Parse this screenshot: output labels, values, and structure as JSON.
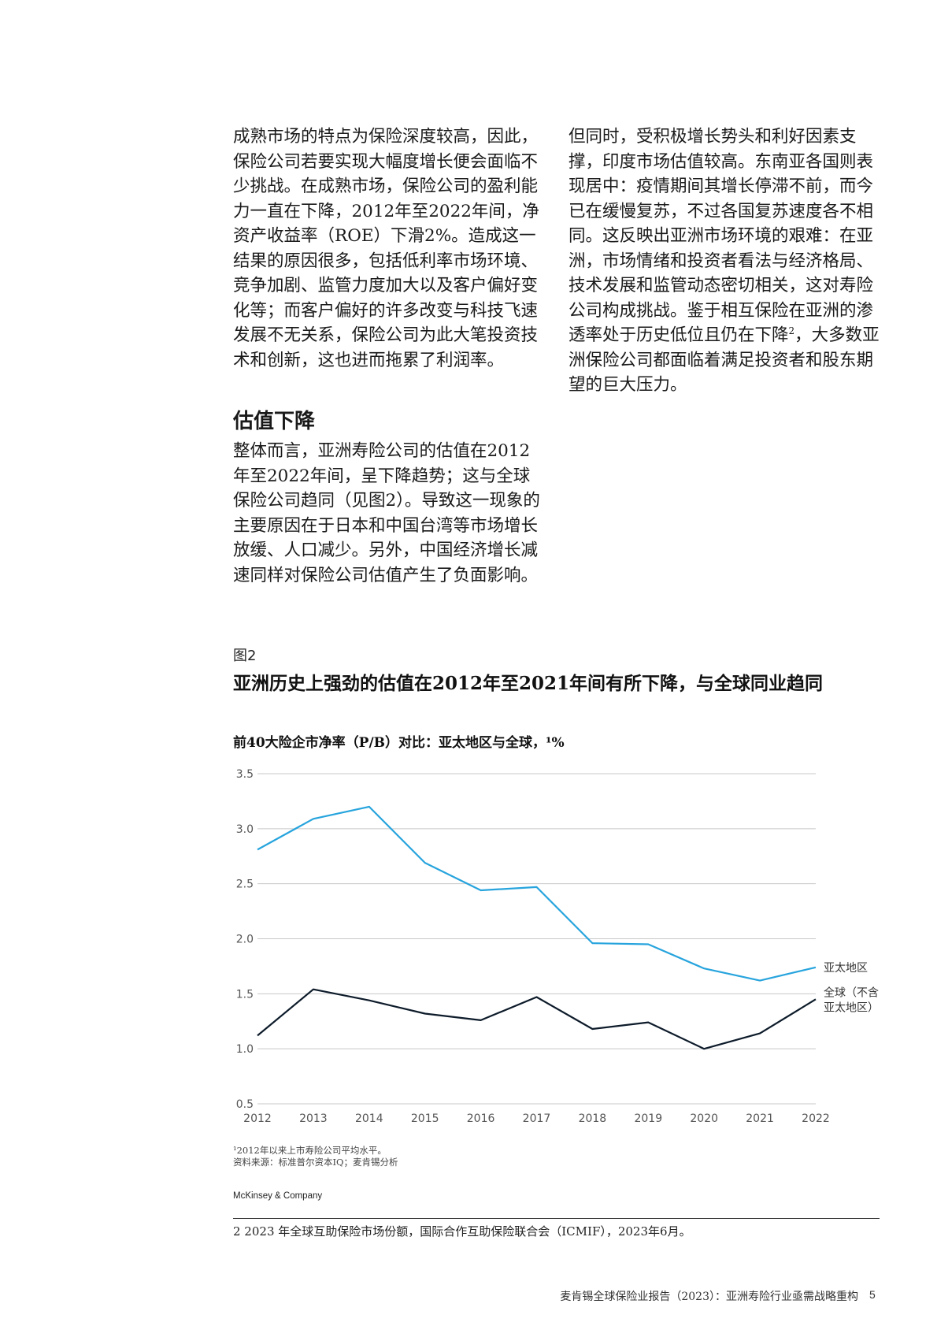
{
  "body": {
    "left_paragraphs": [
      "成熟市场的特点为保险深度较高，因此，保险公司若要实现大幅度增长便会面临不少挑战。在成熟市场，保险公司的盈利能力一直在下降，2012年至2022年间，净资产收益率（ROE）下滑2%。造成这一结果的原因很多，包括低利率市场环境、竞争加剧、监管力度加大以及客户偏好变化等；而客户偏好的许多改变与科技飞速发展不无关系，保险公司为此大笔投资技术和创新，这也进而拖累了利润率。"
    ],
    "section_heading": "估值下降",
    "section_paragraphs": [
      "整体而言，亚洲寿险公司的估值在2012年至2022年间，呈下降趋势；这与全球保险公司趋同（见图2）。导致这一现象的主要原因在于日本和中国台湾等市场增长放缓、人口减少。另外，中国经济增长减速同样对保险公司估值产生了负面影响。"
    ],
    "right_paragraph_a": "但同时，受积极增长势头和利好因素支撑，印度市场估值较高。东南亚各国则表现居中：疫情期间其增长停滞不前，而今已在缓慢复苏，不过各国复苏速度各不相同。这反映出亚洲市场环境的艰难：在亚洲，市场情绪和投资者看法与经济格局、技术发展和监管动态密切相关，这对寿险公司构成挑战。鉴于相互保险在亚洲的渗透率处于历史低位且仍在下降",
    "right_paragraph_sup": "2",
    "right_paragraph_b": "，大多数亚洲保险公司都面临着满足投资者和股东期望的巨大压力。"
  },
  "figure": {
    "label": "图2",
    "title": "亚洲历史上强劲的估值在2012年至2021年间有所下降，与全球同业趋同",
    "notes": [
      "¹2012年以来上市寿险公司平均水平。",
      "资料来源：标准普尔资本IQ；麦肯锡分析"
    ],
    "brand": "McKinsey & Company"
  },
  "chart_data": {
    "type": "line",
    "title": "前40大险企市净率（P/B）对比：亚太地区与全球，¹%",
    "x": [
      2012,
      2013,
      2014,
      2015,
      2016,
      2017,
      2018,
      2019,
      2020,
      2021,
      2022
    ],
    "x_tick_labels": [
      "2012",
      "2013",
      "2014",
      "2015",
      "2016",
      "2017",
      "2018",
      "2019",
      "2020",
      "2021",
      "2022"
    ],
    "ylim": [
      0.5,
      3.5
    ],
    "y_ticks": [
      "0.5",
      "1.0",
      "1.5",
      "2.0",
      "2.5",
      "3.0",
      "3.5"
    ],
    "grid": "horizontal",
    "legend_placement": "right, at line ends",
    "series": [
      {
        "name": "亚太地区",
        "color": "#27a4dd",
        "values": [
          2.81,
          3.09,
          3.2,
          2.69,
          2.44,
          2.47,
          1.96,
          1.95,
          1.73,
          1.62,
          1.74
        ]
      },
      {
        "name": "全球（不含亚太地区）",
        "name_lines": [
          "全球（不含",
          "亚太地区）"
        ],
        "color": "#0d1b2a",
        "values": [
          1.12,
          1.54,
          1.44,
          1.32,
          1.26,
          1.47,
          1.18,
          1.24,
          1.0,
          1.14,
          1.45
        ]
      }
    ]
  },
  "footnote": "2  2023 年全球互助保险市场份额，国际合作互助保险联合会（ICMIF），2023年6月。",
  "footer": {
    "running_title": "麦肯锡全球保险业报告（2023）：亚洲寿险行业亟需战略重构",
    "page_number": "5"
  }
}
